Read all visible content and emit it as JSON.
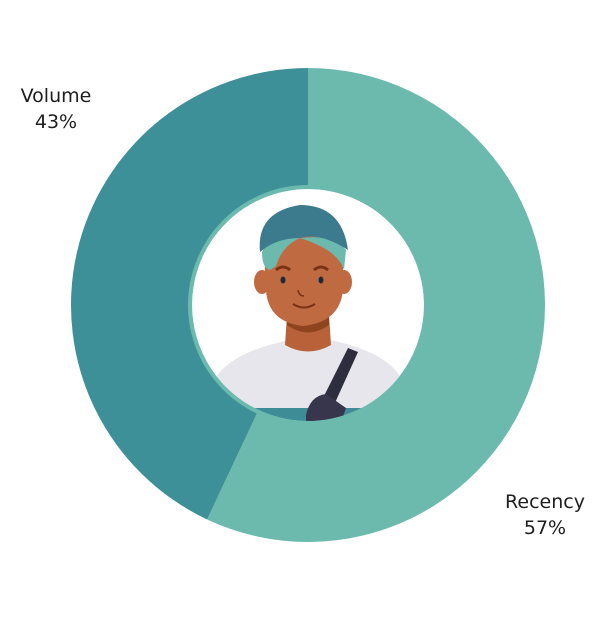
{
  "chart_data": {
    "type": "pie",
    "variant": "donut",
    "start": "top",
    "direction": "clockwise",
    "series": [
      {
        "name": "Recency",
        "value": 57,
        "label": "57%",
        "color": "#6bbaad"
      },
      {
        "name": "Volume",
        "value": 43,
        "label": "43%",
        "color": "#3d9097"
      }
    ],
    "center_image": "avatar-illustration",
    "legend": "none"
  }
}
